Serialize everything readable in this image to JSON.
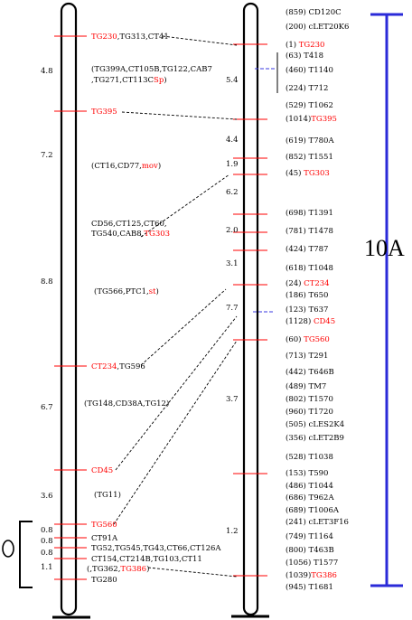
{
  "colors": {
    "marker_red": "#ff0000",
    "scale_blue": "#2a2ad8",
    "dashed_blue": "#3a3ae0",
    "line_black": "#000000"
  },
  "left_map": {
    "markers": [
      {
        "parts": [
          {
            "text": "TG230",
            "color": "red"
          },
          {
            "text": ",TG313,CT41",
            "color": "black"
          }
        ]
      },
      {
        "parts": [
          {
            "text": "TG395",
            "color": "red"
          }
        ]
      },
      {
        "parts": [
          {
            "text": "CT234",
            "color": "red"
          },
          {
            "text": ",TG596",
            "color": "black"
          }
        ]
      },
      {
        "parts": [
          {
            "text": "CD45",
            "color": "red"
          }
        ]
      },
      {
        "parts": [
          {
            "text": "TG560",
            "color": "red"
          }
        ]
      },
      {
        "parts": [
          {
            "text": "CT91A",
            "color": "black"
          }
        ]
      },
      {
        "parts": [
          {
            "text": "TG52,TG545,TG43,CT66,CT126A",
            "color": "black"
          }
        ]
      },
      {
        "parts": [
          {
            "text": "CT154,CT214B,TG103,CT11",
            "color": "black"
          }
        ]
      },
      {
        "parts": [
          {
            "text": "TG280",
            "color": "black"
          }
        ]
      }
    ],
    "groups": [
      {
        "lines": [
          [
            {
              "text": "(TG399A,CT105B,TG122,CAB7",
              "color": "black"
            }
          ],
          [
            {
              "text": ",TG271,CT113C",
              "color": "black"
            },
            {
              "text": "Sp",
              "color": "red"
            },
            {
              "text": ")",
              "color": "black"
            }
          ]
        ]
      },
      {
        "lines": [
          [
            {
              "text": "(CT16,CD77,",
              "color": "black"
            },
            {
              "text": "mov",
              "color": "red"
            },
            {
              "text": ")",
              "color": "black"
            }
          ]
        ]
      },
      {
        "lines": [
          [
            {
              "text": "CD56,CT125,CT60,",
              "color": "black"
            }
          ],
          [
            {
              "text": "TG540,CAB8,",
              "color": "black"
            },
            {
              "text": "TG303",
              "color": "red"
            }
          ]
        ]
      },
      {
        "lines": [
          [
            {
              "text": "(TG566,PTC1,",
              "color": "black"
            },
            {
              "text": "st",
              "color": "red"
            },
            {
              "text": ")",
              "color": "black"
            }
          ]
        ]
      },
      {
        "lines": [
          [
            {
              "text": "(TG148,CD38A,TG12)",
              "color": "black"
            }
          ]
        ]
      },
      {
        "lines": [
          [
            {
              "text": "(TG11)",
              "color": "black"
            }
          ]
        ]
      },
      {
        "lines": [
          [
            {
              "text": "(,TG362,",
              "color": "black"
            },
            {
              "text": "TG386",
              "color": "red"
            },
            {
              "text": ")",
              "color": "black"
            }
          ]
        ]
      }
    ],
    "distances": [
      "4.8",
      "7.2",
      "8.8",
      "6.7",
      "3.6",
      "0.8",
      "0.8",
      "0.8",
      "1.1"
    ]
  },
  "right_map": {
    "markers": [
      {
        "parts": [
          {
            "text": "(859) CD120C",
            "color": "black"
          }
        ]
      },
      {
        "parts": [
          {
            "text": "(200) cLET20K6",
            "color": "black"
          }
        ]
      },
      {
        "parts": [
          {
            "text": "(1) ",
            "color": "black"
          },
          {
            "text": "TG230",
            "color": "red"
          }
        ]
      },
      {
        "parts": [
          {
            "text": "(63) T418",
            "color": "black"
          }
        ]
      },
      {
        "parts": [
          {
            "text": "(460) T1140",
            "color": "black"
          }
        ]
      },
      {
        "parts": [
          {
            "text": "(224) T712",
            "color": "black"
          }
        ]
      },
      {
        "parts": [
          {
            "text": "(529) T1062",
            "color": "black"
          }
        ]
      },
      {
        "parts": [
          {
            "text": "(1014)",
            "color": "black"
          },
          {
            "text": "TG395",
            "color": "red"
          }
        ]
      },
      {
        "parts": [
          {
            "text": "(619) T780A",
            "color": "black"
          }
        ]
      },
      {
        "parts": [
          {
            "text": "(852) T1551",
            "color": "black"
          }
        ]
      },
      {
        "parts": [
          {
            "text": "(45) ",
            "color": "black"
          },
          {
            "text": "TG303",
            "color": "red"
          }
        ]
      },
      {
        "parts": [
          {
            "text": "(698) T1391",
            "color": "black"
          }
        ]
      },
      {
        "parts": [
          {
            "text": "(781) T1478",
            "color": "black"
          }
        ]
      },
      {
        "parts": [
          {
            "text": "(424) T787",
            "color": "black"
          }
        ]
      },
      {
        "parts": [
          {
            "text": "(618) T1048",
            "color": "black"
          }
        ]
      },
      {
        "parts": [
          {
            "text": "(24) ",
            "color": "black"
          },
          {
            "text": "CT234",
            "color": "red"
          }
        ]
      },
      {
        "parts": [
          {
            "text": "(186) T650",
            "color": "black"
          }
        ]
      },
      {
        "parts": [
          {
            "text": "(123) T637",
            "color": "black"
          }
        ]
      },
      {
        "parts": [
          {
            "text": "(1128) ",
            "color": "black"
          },
          {
            "text": "CD45",
            "color": "red"
          }
        ]
      },
      {
        "parts": [
          {
            "text": "(60) ",
            "color": "black"
          },
          {
            "text": "TG560",
            "color": "red"
          }
        ]
      },
      {
        "parts": [
          {
            "text": "(713) T291",
            "color": "black"
          }
        ]
      },
      {
        "parts": [
          {
            "text": "(442) T646B",
            "color": "black"
          }
        ]
      },
      {
        "parts": [
          {
            "text": "(489) TM7",
            "color": "black"
          }
        ]
      },
      {
        "parts": [
          {
            "text": "(802) T1570",
            "color": "black"
          }
        ]
      },
      {
        "parts": [
          {
            "text": "(960) T1720",
            "color": "black"
          }
        ]
      },
      {
        "parts": [
          {
            "text": "(505) cLES2K4",
            "color": "black"
          }
        ]
      },
      {
        "parts": [
          {
            "text": "(356) cLET2B9",
            "color": "black"
          }
        ]
      },
      {
        "parts": [
          {
            "text": "(528) T1038",
            "color": "black"
          }
        ]
      },
      {
        "parts": [
          {
            "text": "(153) T590",
            "color": "black"
          }
        ]
      },
      {
        "parts": [
          {
            "text": "(486) T1044",
            "color": "black"
          }
        ]
      },
      {
        "parts": [
          {
            "text": "(686) T962A",
            "color": "black"
          }
        ]
      },
      {
        "parts": [
          {
            "text": "(689) T1006A",
            "color": "black"
          }
        ]
      },
      {
        "parts": [
          {
            "text": "(241) cLET3F16",
            "color": "black"
          }
        ]
      },
      {
        "parts": [
          {
            "text": "(749) T1164",
            "color": "black"
          }
        ]
      },
      {
        "parts": [
          {
            "text": "(800) T463B",
            "color": "black"
          }
        ]
      },
      {
        "parts": [
          {
            "text": "(1056) T1577",
            "color": "black"
          }
        ]
      },
      {
        "parts": [
          {
            "text": "(1039)",
            "color": "black"
          },
          {
            "text": "TG386",
            "color": "red"
          }
        ]
      },
      {
        "parts": [
          {
            "text": "(945) T1681",
            "color": "black"
          }
        ]
      }
    ],
    "distances": [
      "5.4",
      "4.4",
      "1.9",
      "6.2",
      "2.0",
      "3.1",
      "7.7",
      "3.7",
      "1.2"
    ]
  },
  "scale_bar": {
    "label": "10A"
  }
}
